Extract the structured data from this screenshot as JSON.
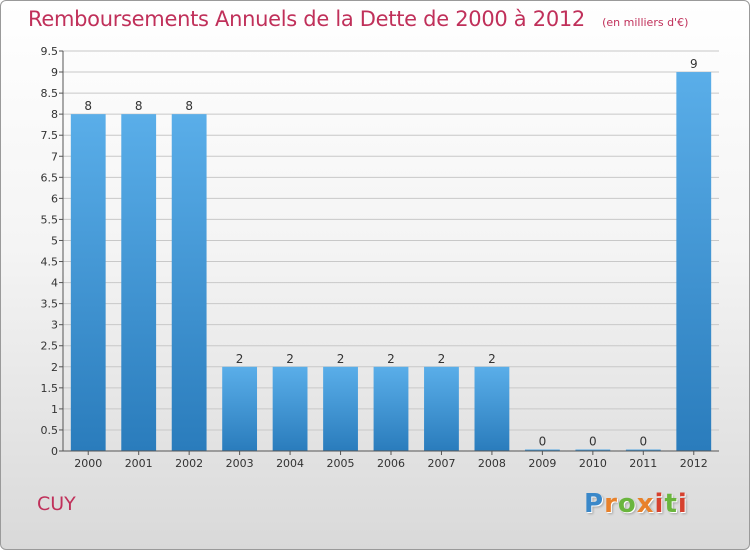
{
  "header": {
    "title": "Remboursements Annuels de la Dette de 2000 à 2012",
    "subtitle": "(en milliers d'€)"
  },
  "footer": {
    "place": "CUY",
    "brand": "Proxiti"
  },
  "colors": {
    "bar_top": "#5aaee9",
    "bar_bottom": "#2a7cbc",
    "title": "#c0305a",
    "grid": "#c8c8c8"
  },
  "chart_data": {
    "type": "bar",
    "categories": [
      "2000",
      "2001",
      "2002",
      "2003",
      "2004",
      "2005",
      "2006",
      "2007",
      "2008",
      "2009",
      "2010",
      "2011",
      "2012"
    ],
    "values": [
      8,
      8,
      8,
      2,
      2,
      2,
      2,
      2,
      2,
      0,
      0,
      0,
      9
    ],
    "data_labels": [
      "8",
      "8",
      "8",
      "2",
      "2",
      "2",
      "2",
      "2",
      "2",
      "0",
      "0",
      "0",
      "9"
    ],
    "ylim": [
      0,
      9.5
    ],
    "yticks": [
      0,
      0.5,
      1,
      1.5,
      2,
      2.5,
      3,
      3.5,
      4,
      4.5,
      5,
      5.5,
      6,
      6.5,
      7,
      7.5,
      8,
      8.5,
      9,
      9.5
    ],
    "ytick_labels": [
      "0",
      "0.5",
      "1",
      "1.5",
      "2",
      "2.5",
      "3",
      "3.5",
      "4",
      "4.5",
      "5",
      "5.5",
      "6",
      "6.5",
      "7",
      "7.5",
      "8",
      "8.5",
      "9",
      "9.5"
    ],
    "grid": true
  }
}
